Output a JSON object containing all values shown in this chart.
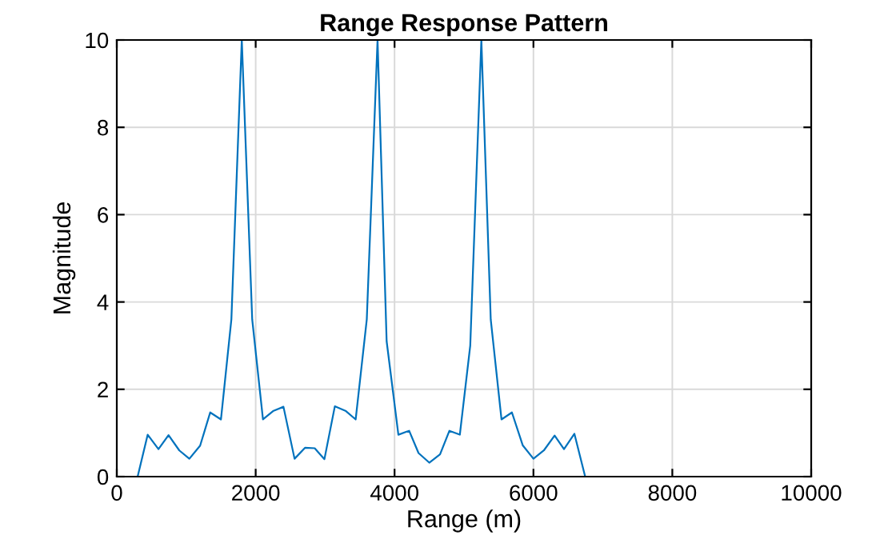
{
  "chart_data": {
    "type": "line",
    "title": "Range Response Pattern",
    "xlabel": "Range (m)",
    "ylabel": "Magnitude",
    "x": [
      0,
      300,
      445,
      600,
      745,
      900,
      1045,
      1200,
      1345,
      1500,
      1650,
      1800,
      1950,
      2105,
      2250,
      2400,
      2560,
      2710,
      2850,
      2990,
      3140,
      3300,
      3440,
      3600,
      3755,
      3886,
      4055,
      4210,
      4345,
      4500,
      4655,
      4790,
      4940,
      5090,
      5250,
      5385,
      5540,
      5690,
      5845,
      6000,
      6150,
      6305,
      6440,
      6590,
      6745,
      10000
    ],
    "series": [
      {
        "color": "#0072bd",
        "values": [
          0,
          0,
          0.96,
          0.63,
          0.95,
          0.6,
          0.41,
          0.71,
          1.47,
          1.31,
          3.6,
          10,
          3.6,
          1.31,
          1.5,
          1.6,
          0.41,
          0.66,
          0.65,
          0.4,
          1.61,
          1.5,
          1.31,
          3.6,
          10,
          3.1,
          0.96,
          1.05,
          0.54,
          0.32,
          0.51,
          1.05,
          0.96,
          3.0,
          10,
          3.6,
          1.31,
          1.47,
          0.72,
          0.41,
          0.6,
          0.94,
          0.63,
          0.98,
          0,
          0
        ]
      }
    ],
    "xlim": [
      0,
      10000
    ],
    "xticks": [
      0,
      2000,
      4000,
      6000,
      8000,
      10000
    ],
    "ylim": [
      0,
      10
    ],
    "yticks": [
      0,
      2,
      4,
      6,
      8,
      10
    ],
    "grid": true,
    "legend": false,
    "marker": "none",
    "line_style": "solid"
  }
}
